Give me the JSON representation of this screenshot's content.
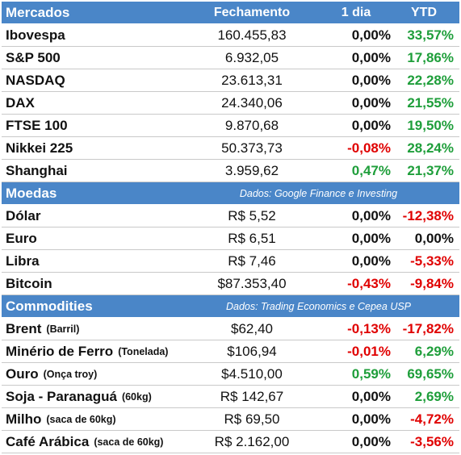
{
  "sections": [
    {
      "title": "Mercados",
      "source": "",
      "header": {
        "close": "Fechamento",
        "day": "1 dia",
        "ytd": "YTD"
      },
      "rows": [
        {
          "name": "Ibovespa",
          "unit": "",
          "close": "160.455,83",
          "day": "0,00%",
          "ytd": "33,57%",
          "day_tone": "neu",
          "ytd_tone": "pos"
        },
        {
          "name": "S&P 500",
          "unit": "",
          "close": "6.932,05",
          "day": "0,00%",
          "ytd": "17,86%",
          "day_tone": "neu",
          "ytd_tone": "pos"
        },
        {
          "name": "NASDAQ",
          "unit": "",
          "close": "23.613,31",
          "day": "0,00%",
          "ytd": "22,28%",
          "day_tone": "neu",
          "ytd_tone": "pos"
        },
        {
          "name": "DAX",
          "unit": "",
          "close": "24.340,06",
          "day": "0,00%",
          "ytd": "21,55%",
          "day_tone": "neu",
          "ytd_tone": "pos"
        },
        {
          "name": "FTSE 100",
          "unit": "",
          "close": "9.870,68",
          "day": "0,00%",
          "ytd": "19,50%",
          "day_tone": "neu",
          "ytd_tone": "pos"
        },
        {
          "name": "Nikkei 225",
          "unit": "",
          "close": "50.373,73",
          "day": "-0,08%",
          "ytd": "28,24%",
          "day_tone": "neg",
          "ytd_tone": "pos"
        },
        {
          "name": "Shanghai",
          "unit": "",
          "close": "3.959,62",
          "day": "0,47%",
          "ytd": "21,37%",
          "day_tone": "pos",
          "ytd_tone": "pos"
        }
      ]
    },
    {
      "title": "Moedas",
      "source": "Dados: Google Finance e Investing",
      "header": null,
      "rows": [
        {
          "name": "Dólar",
          "unit": "",
          "close": "R$ 5,52",
          "day": "0,00%",
          "ytd": "-12,38%",
          "day_tone": "neu",
          "ytd_tone": "neg"
        },
        {
          "name": "Euro",
          "unit": "",
          "close": "R$ 6,51",
          "day": "0,00%",
          "ytd": "0,00%",
          "day_tone": "neu",
          "ytd_tone": "neu"
        },
        {
          "name": "Libra",
          "unit": "",
          "close": "R$ 7,46",
          "day": "0,00%",
          "ytd": "-5,33%",
          "day_tone": "neu",
          "ytd_tone": "neg"
        },
        {
          "name": "Bitcoin",
          "unit": "",
          "close": "$87.353,40",
          "day": "-0,43%",
          "ytd": "-9,84%",
          "day_tone": "neg",
          "ytd_tone": "neg"
        }
      ]
    },
    {
      "title": "Commodities",
      "source": "Dados: Trading Economics e Cepea USP",
      "header": null,
      "rows": [
        {
          "name": "Brent",
          "unit": "(Barril)",
          "close": "$62,40",
          "day": "-0,13%",
          "ytd": "-17,82%",
          "day_tone": "neg",
          "ytd_tone": "neg"
        },
        {
          "name": "Minério de Ferro",
          "unit": "(Tonelada)",
          "close": "$106,94",
          "day": "-0,01%",
          "ytd": "6,29%",
          "day_tone": "neg",
          "ytd_tone": "pos"
        },
        {
          "name": "Ouro",
          "unit": "(Onça troy)",
          "close": "$4.510,00",
          "day": "0,59%",
          "ytd": "69,65%",
          "day_tone": "pos",
          "ytd_tone": "pos"
        },
        {
          "name": "Soja - Paranaguá",
          "unit": "(60kg)",
          "close": "R$ 142,67",
          "day": "0,00%",
          "ytd": "2,69%",
          "day_tone": "neu",
          "ytd_tone": "pos"
        },
        {
          "name": "Milho",
          "unit": "(saca de 60kg)",
          "close": "R$ 69,50",
          "day": "0,00%",
          "ytd": "-4,72%",
          "day_tone": "neu",
          "ytd_tone": "neg"
        },
        {
          "name": "Café Arábica",
          "unit": "(saca de 60kg)",
          "close": "R$ 2.162,00",
          "day": "0,00%",
          "ytd": "-3,56%",
          "day_tone": "neu",
          "ytd_tone": "neg"
        }
      ]
    }
  ],
  "colors": {
    "header_bg": "#4a86c8",
    "positive": "#1e9e3a",
    "negative": "#e00000"
  }
}
